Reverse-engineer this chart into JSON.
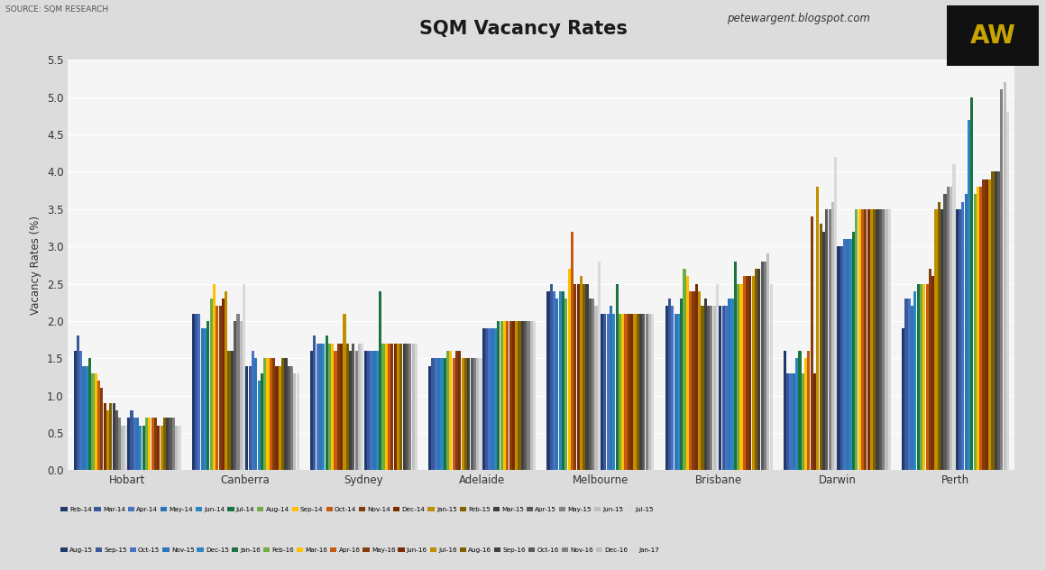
{
  "title": "SQM Vacancy Rates",
  "ylabel": "Vacancy Rates (%)",
  "source": "SOURCE: SQM RESEARCH",
  "website": "petewargent.blogspot.com",
  "cities": [
    "Hobart",
    "Canberra",
    "Sydney",
    "Adelaide",
    "Melbourne",
    "Brisbane",
    "Darwin",
    "Perth"
  ],
  "ylim": [
    0,
    5.5
  ],
  "yticks": [
    0.0,
    0.5,
    1.0,
    1.5,
    2.0,
    2.5,
    3.0,
    3.5,
    4.0,
    4.5,
    5.0,
    5.5
  ],
  "series_labels": [
    "Feb-14",
    "Mar-14",
    "Apr-14",
    "May-14",
    "Jun-14",
    "Jul-14",
    "Aug-14",
    "Sep-14",
    "Oct-14",
    "Nov-14",
    "Dec-14",
    "Jan-15",
    "Feb-15",
    "Mar-15",
    "Apr-15",
    "May-15",
    "Jun-15",
    "Jul-15",
    "Aug-15",
    "Sep-15",
    "Oct-15",
    "Nov-15",
    "Dec-15",
    "Jan-16",
    "Feb-16",
    "Mar-16",
    "Apr-16",
    "May-16",
    "Jun-16",
    "Jul-16",
    "Aug-16",
    "Sep-16",
    "Oct-16",
    "Nov-16",
    "Dec-16",
    "Jan-17"
  ],
  "series_colors": [
    "#1f3a6e",
    "#3b5998",
    "#4472c4",
    "#2e75b6",
    "#2e86c1",
    "#1a7340",
    "#70ad47",
    "#ffc000",
    "#c55a11",
    "#843c0c",
    "#7b2c00",
    "#bf8f00",
    "#7f6000",
    "#404040",
    "#595959",
    "#808080",
    "#bfbfbf",
    "#d9d9d9",
    "#1f3a6e",
    "#3b5998",
    "#4472c4",
    "#2e75b6",
    "#2e86c1",
    "#1a7340",
    "#70ad47",
    "#ffc000",
    "#c55a11",
    "#843c0c",
    "#7b2c00",
    "#bf8f00",
    "#7f6000",
    "#404040",
    "#595959",
    "#808080",
    "#bfbfbf",
    "#d9d9d9"
  ],
  "data": {
    "Hobart": [
      1.6,
      1.8,
      1.6,
      1.4,
      1.4,
      1.5,
      1.3,
      1.3,
      1.2,
      1.1,
      0.9,
      0.8,
      0.9,
      0.9,
      0.8,
      0.7,
      0.6,
      0.6,
      0.7,
      0.8,
      0.7,
      0.7,
      0.6,
      0.6,
      0.7,
      0.7,
      0.7,
      0.7,
      0.6,
      0.6,
      0.7,
      0.7,
      0.7,
      0.7,
      0.6,
      0.6
    ],
    "Canberra": [
      2.1,
      2.1,
      2.1,
      1.9,
      1.9,
      2.0,
      2.3,
      2.5,
      2.2,
      2.2,
      2.3,
      2.4,
      1.6,
      1.6,
      2.0,
      2.1,
      2.0,
      2.5,
      1.4,
      1.4,
      1.6,
      1.5,
      1.2,
      1.3,
      1.5,
      1.5,
      1.5,
      1.5,
      1.4,
      1.4,
      1.5,
      1.5,
      1.4,
      1.4,
      1.3,
      1.3
    ],
    "Sydney": [
      1.6,
      1.8,
      1.7,
      1.7,
      1.7,
      1.8,
      1.7,
      1.7,
      1.6,
      1.7,
      1.7,
      2.1,
      1.7,
      1.6,
      1.7,
      1.6,
      1.7,
      1.7,
      1.6,
      1.6,
      1.6,
      1.6,
      1.6,
      2.4,
      1.7,
      1.7,
      1.7,
      1.7,
      1.7,
      1.7,
      1.7,
      1.7,
      1.7,
      1.7,
      1.7,
      1.7
    ],
    "Adelaide": [
      1.4,
      1.5,
      1.5,
      1.5,
      1.5,
      1.5,
      1.6,
      1.6,
      1.5,
      1.6,
      1.6,
      1.5,
      1.5,
      1.5,
      1.5,
      1.5,
      1.5,
      1.5,
      1.9,
      1.9,
      1.9,
      1.9,
      1.9,
      2.0,
      2.0,
      2.0,
      2.0,
      2.0,
      2.0,
      2.0,
      2.0,
      2.0,
      2.0,
      2.0,
      2.0,
      2.0
    ],
    "Melbourne": [
      2.4,
      2.5,
      2.4,
      2.3,
      2.4,
      2.4,
      2.3,
      2.7,
      3.2,
      2.5,
      2.5,
      2.6,
      2.5,
      2.5,
      2.3,
      2.3,
      2.2,
      2.8,
      2.1,
      2.1,
      2.1,
      2.2,
      2.1,
      2.5,
      2.1,
      2.1,
      2.1,
      2.1,
      2.1,
      2.1,
      2.1,
      2.1,
      2.1,
      2.1,
      2.1,
      2.1
    ],
    "Brisbane": [
      2.2,
      2.3,
      2.2,
      2.1,
      2.1,
      2.3,
      2.7,
      2.6,
      2.4,
      2.4,
      2.5,
      2.4,
      2.2,
      2.3,
      2.2,
      2.2,
      2.2,
      2.5,
      2.2,
      2.2,
      2.2,
      2.3,
      2.3,
      2.8,
      2.5,
      2.5,
      2.6,
      2.6,
      2.6,
      2.6,
      2.7,
      2.7,
      2.8,
      2.8,
      2.9,
      2.5
    ],
    "Darwin": [
      1.6,
      1.3,
      1.3,
      1.3,
      1.5,
      1.6,
      1.3,
      1.5,
      1.6,
      3.4,
      1.3,
      3.8,
      3.3,
      3.2,
      3.5,
      3.5,
      3.6,
      4.2,
      3.0,
      3.0,
      3.1,
      3.1,
      3.1,
      3.2,
      3.5,
      3.5,
      3.5,
      3.5,
      3.5,
      3.5,
      3.5,
      3.5,
      3.5,
      3.5,
      3.5,
      3.5
    ],
    "Perth": [
      1.9,
      2.3,
      2.3,
      2.2,
      2.4,
      2.5,
      2.5,
      2.5,
      2.5,
      2.7,
      2.6,
      3.5,
      3.6,
      3.5,
      3.7,
      3.8,
      3.8,
      4.1,
      3.5,
      3.5,
      3.6,
      3.7,
      4.7,
      5.0,
      3.7,
      3.8,
      3.8,
      3.9,
      3.9,
      3.9,
      4.0,
      4.0,
      4.0,
      5.1,
      5.2,
      4.8
    ]
  },
  "bg_color": "#dcdcdc",
  "plot_bg_color": "#f5f5f5",
  "logo_bg": "#111111",
  "logo_text": "AW",
  "logo_text_color": "#c8a400"
}
